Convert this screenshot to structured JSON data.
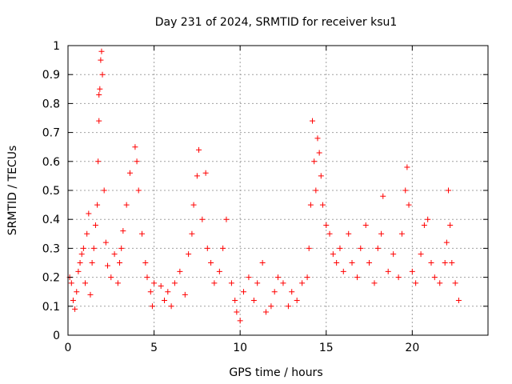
{
  "chart_data": {
    "type": "scatter",
    "title": "Day 231 of 2024, SRMTID for receiver ksu1",
    "xlabel": "GPS time / hours",
    "ylabel": "SRMTID / TECUs",
    "xlim": [
      0,
      24.4
    ],
    "ylim": [
      0,
      1
    ],
    "x_ticks": [
      {
        "value": 0,
        "label": "0"
      },
      {
        "value": 5,
        "label": "5"
      },
      {
        "value": 10,
        "label": "10"
      },
      {
        "value": 15,
        "label": "15"
      },
      {
        "value": 20,
        "label": "20"
      }
    ],
    "y_ticks": [
      {
        "value": 0,
        "label": "0"
      },
      {
        "value": 0.1,
        "label": "0.1"
      },
      {
        "value": 0.2,
        "label": "0.2"
      },
      {
        "value": 0.3,
        "label": "0.3"
      },
      {
        "value": 0.4,
        "label": "0.4"
      },
      {
        "value": 0.5,
        "label": "0.5"
      },
      {
        "value": 0.6,
        "label": "0.6"
      },
      {
        "value": 0.7,
        "label": "0.7"
      },
      {
        "value": 0.8,
        "label": "0.8"
      },
      {
        "value": 0.9,
        "label": "0.9"
      },
      {
        "value": 1,
        "label": "1"
      }
    ],
    "grid": true,
    "marker": "plus",
    "color": "#ff0000",
    "series": [
      {
        "name": "SRMTID",
        "points": [
          [
            0.1,
            0.2
          ],
          [
            0.2,
            0.18
          ],
          [
            0.3,
            0.12
          ],
          [
            0.4,
            0.09
          ],
          [
            0.5,
            0.15
          ],
          [
            0.6,
            0.22
          ],
          [
            0.7,
            0.25
          ],
          [
            0.8,
            0.28
          ],
          [
            0.9,
            0.3
          ],
          [
            1.0,
            0.18
          ],
          [
            1.1,
            0.35
          ],
          [
            1.2,
            0.42
          ],
          [
            1.3,
            0.14
          ],
          [
            1.4,
            0.25
          ],
          [
            1.5,
            0.3
          ],
          [
            1.6,
            0.38
          ],
          [
            1.7,
            0.45
          ],
          [
            1.75,
            0.6
          ],
          [
            1.8,
            0.74
          ],
          [
            1.85,
            0.85
          ],
          [
            1.9,
            0.95
          ],
          [
            1.95,
            0.98
          ],
          [
            2.0,
            0.9
          ],
          [
            1.8,
            0.83
          ],
          [
            2.1,
            0.5
          ],
          [
            2.2,
            0.32
          ],
          [
            2.3,
            0.24
          ],
          [
            2.5,
            0.2
          ],
          [
            2.7,
            0.28
          ],
          [
            2.9,
            0.18
          ],
          [
            3.0,
            0.25
          ],
          [
            3.1,
            0.3
          ],
          [
            3.2,
            0.36
          ],
          [
            3.4,
            0.45
          ],
          [
            3.6,
            0.56
          ],
          [
            3.9,
            0.65
          ],
          [
            4.0,
            0.6
          ],
          [
            4.1,
            0.5
          ],
          [
            4.3,
            0.35
          ],
          [
            4.5,
            0.25
          ],
          [
            4.6,
            0.2
          ],
          [
            4.8,
            0.15
          ],
          [
            4.9,
            0.1
          ],
          [
            5.0,
            0.18
          ],
          [
            5.4,
            0.17
          ],
          [
            5.6,
            0.12
          ],
          [
            5.8,
            0.15
          ],
          [
            6.0,
            0.1
          ],
          [
            6.2,
            0.18
          ],
          [
            6.5,
            0.22
          ],
          [
            6.8,
            0.14
          ],
          [
            7.0,
            0.28
          ],
          [
            7.2,
            0.35
          ],
          [
            7.3,
            0.45
          ],
          [
            7.5,
            0.55
          ],
          [
            7.6,
            0.64
          ],
          [
            7.8,
            0.4
          ],
          [
            8.0,
            0.56
          ],
          [
            8.1,
            0.3
          ],
          [
            8.3,
            0.25
          ],
          [
            8.5,
            0.18
          ],
          [
            8.8,
            0.22
          ],
          [
            9.0,
            0.3
          ],
          [
            9.2,
            0.4
          ],
          [
            9.5,
            0.18
          ],
          [
            9.7,
            0.12
          ],
          [
            9.8,
            0.08
          ],
          [
            10.0,
            0.05
          ],
          [
            10.2,
            0.15
          ],
          [
            10.5,
            0.2
          ],
          [
            10.8,
            0.12
          ],
          [
            11.0,
            0.18
          ],
          [
            11.3,
            0.25
          ],
          [
            11.5,
            0.08
          ],
          [
            11.8,
            0.1
          ],
          [
            12.0,
            0.15
          ],
          [
            12.2,
            0.2
          ],
          [
            12.5,
            0.18
          ],
          [
            12.8,
            0.1
          ],
          [
            13.0,
            0.15
          ],
          [
            13.3,
            0.12
          ],
          [
            13.6,
            0.18
          ],
          [
            13.9,
            0.2
          ],
          [
            14.0,
            0.3
          ],
          [
            14.1,
            0.45
          ],
          [
            14.2,
            0.74
          ],
          [
            14.3,
            0.6
          ],
          [
            14.4,
            0.5
          ],
          [
            14.5,
            0.68
          ],
          [
            14.6,
            0.63
          ],
          [
            14.7,
            0.55
          ],
          [
            14.8,
            0.45
          ],
          [
            15.0,
            0.38
          ],
          [
            15.2,
            0.35
          ],
          [
            15.4,
            0.28
          ],
          [
            15.6,
            0.25
          ],
          [
            15.8,
            0.3
          ],
          [
            16.0,
            0.22
          ],
          [
            16.3,
            0.35
          ],
          [
            16.5,
            0.25
          ],
          [
            16.8,
            0.2
          ],
          [
            17.0,
            0.3
          ],
          [
            17.3,
            0.38
          ],
          [
            17.5,
            0.25
          ],
          [
            17.8,
            0.18
          ],
          [
            18.0,
            0.3
          ],
          [
            18.2,
            0.35
          ],
          [
            18.3,
            0.48
          ],
          [
            18.6,
            0.22
          ],
          [
            18.9,
            0.28
          ],
          [
            19.2,
            0.2
          ],
          [
            19.4,
            0.35
          ],
          [
            19.6,
            0.5
          ],
          [
            19.7,
            0.58
          ],
          [
            19.8,
            0.45
          ],
          [
            20.0,
            0.22
          ],
          [
            20.2,
            0.18
          ],
          [
            20.5,
            0.28
          ],
          [
            20.7,
            0.38
          ],
          [
            20.9,
            0.4
          ],
          [
            21.1,
            0.25
          ],
          [
            21.3,
            0.2
          ],
          [
            21.6,
            0.18
          ],
          [
            21.9,
            0.25
          ],
          [
            22.0,
            0.32
          ],
          [
            22.1,
            0.5
          ],
          [
            22.2,
            0.38
          ],
          [
            22.3,
            0.25
          ],
          [
            22.5,
            0.18
          ],
          [
            22.7,
            0.12
          ]
        ]
      }
    ]
  }
}
